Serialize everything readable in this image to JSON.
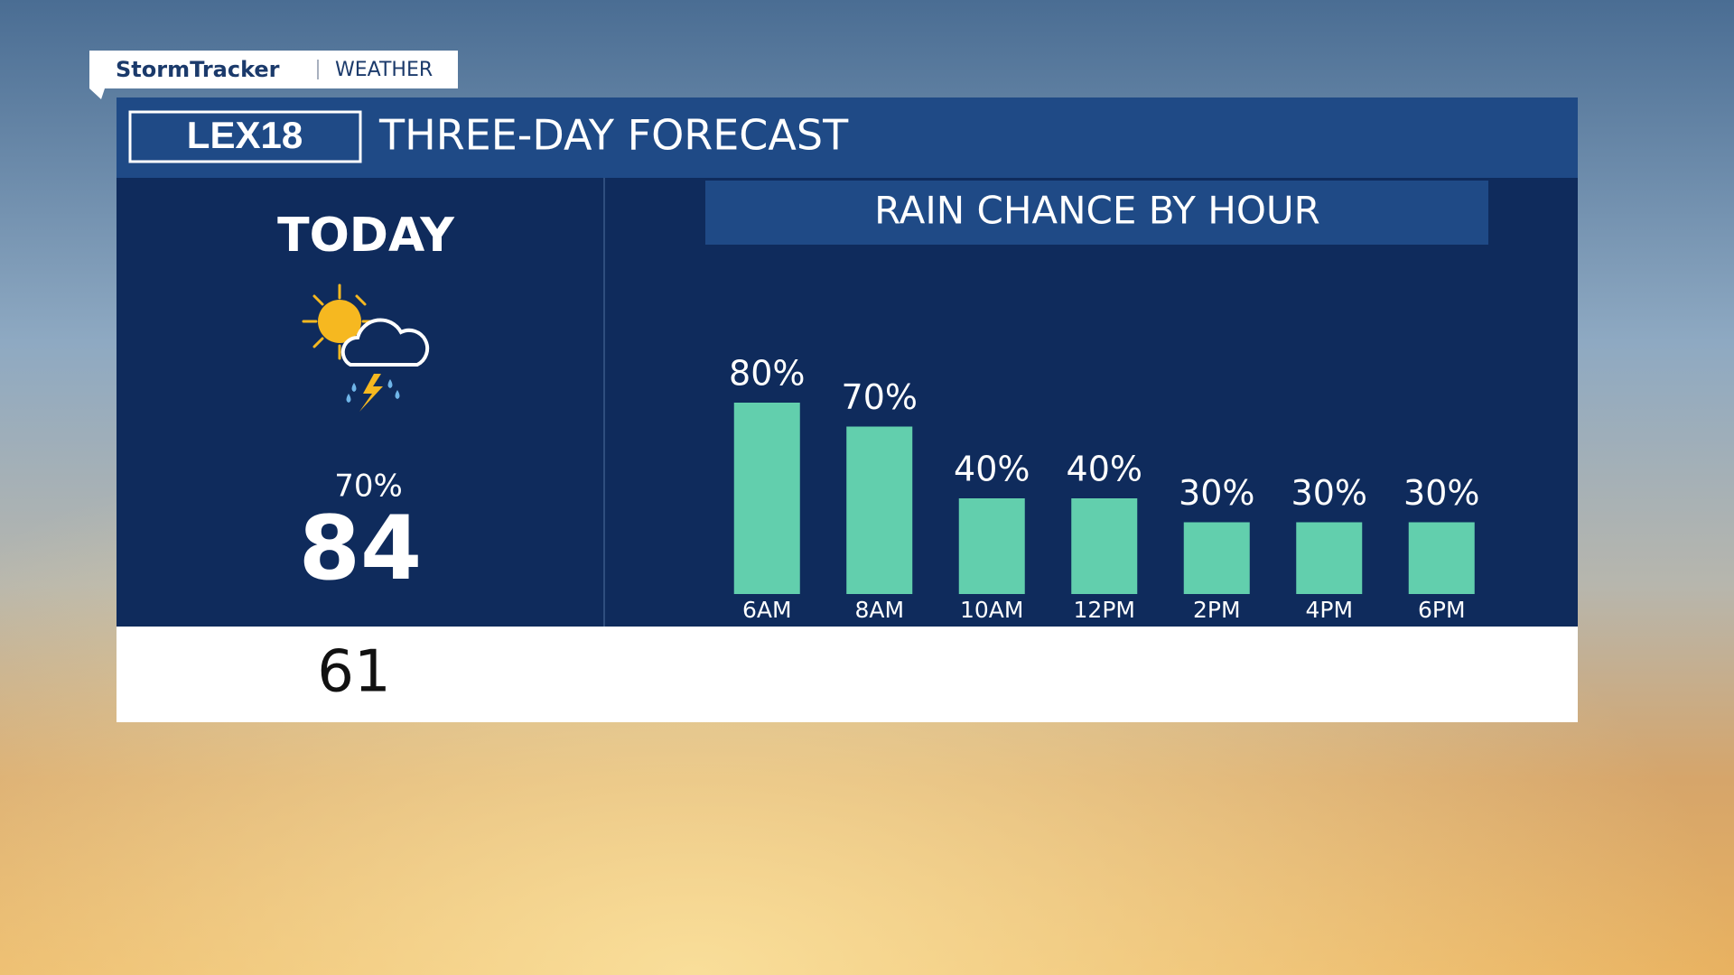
{
  "brand": {
    "name": "StormTracker",
    "section": "WEATHER",
    "station": "LEX18"
  },
  "header": {
    "title": "THREE-DAY FORECAST"
  },
  "today": {
    "label": "TODAY",
    "rain_chance": "70%",
    "high": 84,
    "low": 61
  },
  "chart_data": {
    "type": "bar",
    "title": "RAIN CHANCE BY HOUR",
    "categories": [
      "6AM",
      "8AM",
      "10AM",
      "12PM",
      "2PM",
      "4PM",
      "6PM"
    ],
    "values": [
      80,
      70,
      40,
      40,
      30,
      30,
      30
    ],
    "value_labels": [
      "80%",
      "70%",
      "40%",
      "40%",
      "30%",
      "30%",
      "30%"
    ],
    "color": "#62cfad"
  }
}
